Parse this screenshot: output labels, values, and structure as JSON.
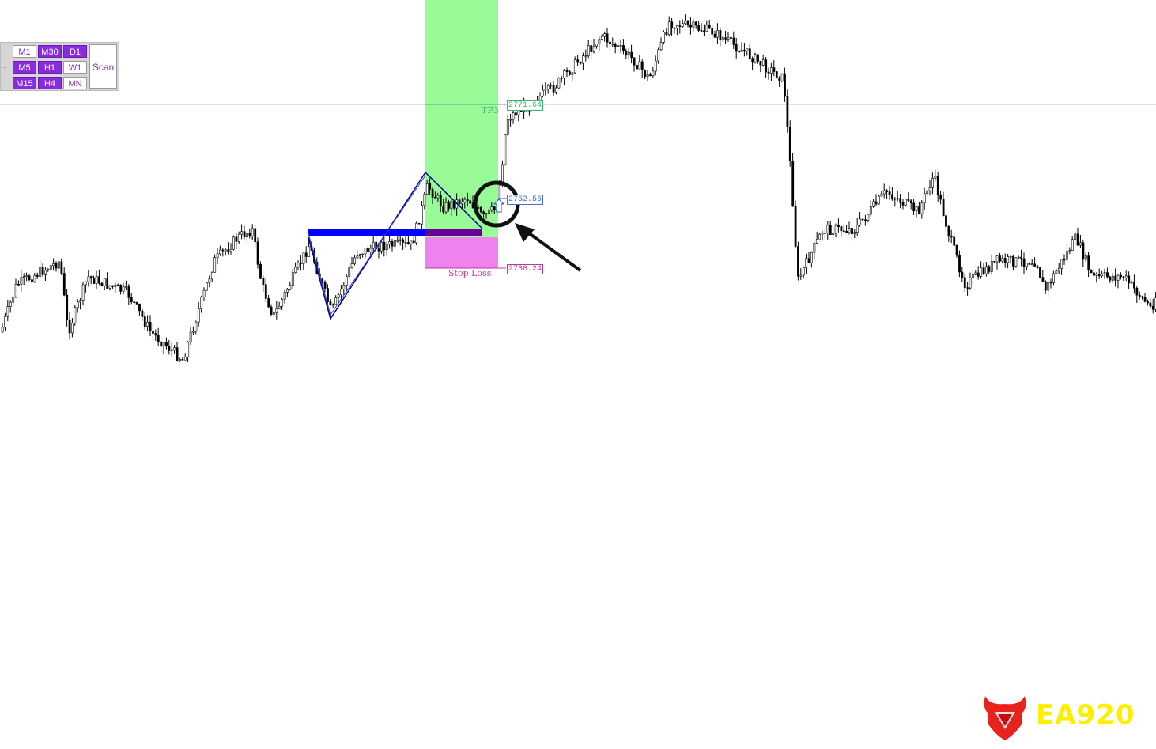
{
  "timeframe_panel": {
    "buttons": [
      {
        "label": "M1",
        "active": false
      },
      {
        "label": "M30",
        "active": true
      },
      {
        "label": "D1",
        "active": true
      },
      {
        "label": "M5",
        "active": true
      },
      {
        "label": "H1",
        "active": true
      },
      {
        "label": "W1",
        "active": false
      },
      {
        "label": "M15",
        "active": true
      },
      {
        "label": "H4",
        "active": true
      },
      {
        "label": "MN",
        "active": false
      }
    ],
    "scan_label": "Scan",
    "handle": ".."
  },
  "trade": {
    "tp_label": "TP3",
    "tp_price": "2771.64",
    "entry_price": "2752.56",
    "sl_label": "Stop Loss",
    "sl_price": "2738.24"
  },
  "colors": {
    "tp_zone": "#98fb98",
    "sl_zone": "#ee82ee",
    "pattern_line": "#00008b",
    "breakout_bar": "#0000ff",
    "button_active": "#8a2be2"
  },
  "logo": {
    "text": "EA920"
  }
}
